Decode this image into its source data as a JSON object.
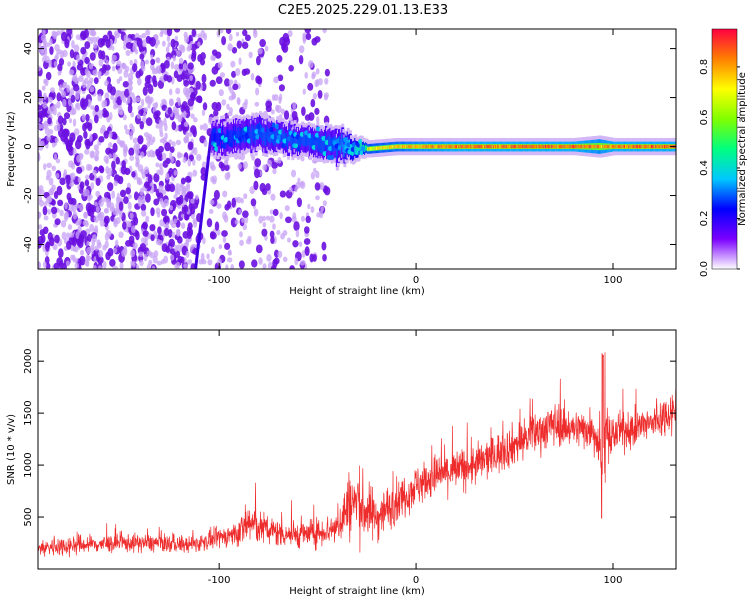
{
  "title": "C2E5.2025.229.01.13.E33",
  "chart_data": [
    {
      "type": "heatmap",
      "xlabel": "Height of straight line (km)",
      "ylabel": "Frequency (Hz)",
      "xlim": [
        -192,
        132
      ],
      "ylim": [
        -50,
        48
      ],
      "xticks": [
        -100,
        0,
        100
      ],
      "yticks": [
        -40,
        -20,
        0,
        20,
        40
      ],
      "colorbar": {
        "label": "Normalized spectral amplitude",
        "range": [
          0,
          0.95
        ],
        "ticks": [
          0.0,
          0.2,
          0.4,
          0.6,
          0.8
        ],
        "colors": [
          "#ffffff",
          "#7b00ff",
          "#0000ff",
          "#00c8ff",
          "#00ff80",
          "#80ff00",
          "#ffff00",
          "#ff8000",
          "#ff0040"
        ]
      },
      "features": [
        {
          "label": "broadband noise",
          "x_range": [
            -192,
            -112
          ],
          "f_range": [
            -50,
            48
          ],
          "amplitude": 0.08
        },
        {
          "label": "sparse noise",
          "x_range": [
            -112,
            -45
          ],
          "f_range": [
            -50,
            48
          ],
          "amplitude": 0.04
        },
        {
          "label": "chirp",
          "x": [
            -112,
            -104
          ],
          "f": [
            -50,
            5
          ],
          "amplitude": 0.12
        },
        {
          "label": "signal band",
          "x": [
            -104,
            -80,
            -60,
            -40,
            -25,
            -10,
            0,
            20,
            50,
            80,
            93,
            100,
            132
          ],
          "f": [
            3,
            5,
            3,
            0,
            -1,
            0,
            0,
            0,
            0,
            0,
            0,
            0,
            0
          ],
          "width_hz": [
            12,
            12,
            10,
            12,
            4,
            4,
            4,
            4,
            4,
            4,
            6,
            4,
            4
          ],
          "amplitude": [
            0.35,
            0.4,
            0.4,
            0.4,
            0.7,
            0.75,
            0.8,
            0.85,
            0.85,
            0.85,
            0.8,
            0.85,
            0.85
          ]
        }
      ]
    },
    {
      "type": "line",
      "xlabel": "Height of straight line (km)",
      "ylabel": "SNR (10 * v/v)",
      "xlim": [
        -192,
        132
      ],
      "ylim": [
        0,
        2300
      ],
      "xticks": [
        -100,
        0,
        100
      ],
      "yticks": [
        500,
        1000,
        1500,
        2000
      ],
      "series": [
        {
          "color": "#ee2c2c",
          "x": [
            -192,
            -175,
            -160,
            -145,
            -130,
            -115,
            -100,
            -90,
            -85,
            -80,
            -70,
            -60,
            -50,
            -40,
            -35,
            -30,
            -25,
            -20,
            -10,
            0,
            10,
            20,
            30,
            40,
            50,
            60,
            70,
            80,
            90,
            95,
            100,
            110,
            120,
            132
          ],
          "y": [
            200,
            230,
            240,
            250,
            250,
            230,
            300,
            350,
            450,
            400,
            350,
            330,
            350,
            400,
            600,
            650,
            550,
            500,
            650,
            800,
            900,
            950,
            1000,
            1100,
            1200,
            1300,
            1400,
            1350,
            1350,
            1100,
            1300,
            1350,
            1400,
            1550
          ],
          "spread": [
            110,
            120,
            110,
            110,
            110,
            100,
            120,
            150,
            300,
            200,
            170,
            160,
            170,
            200,
            400,
            450,
            350,
            300,
            250,
            250,
            260,
            250,
            250,
            250,
            250,
            250,
            260,
            220,
            260,
            500,
            220,
            220,
            230,
            260
          ]
        }
      ]
    }
  ]
}
